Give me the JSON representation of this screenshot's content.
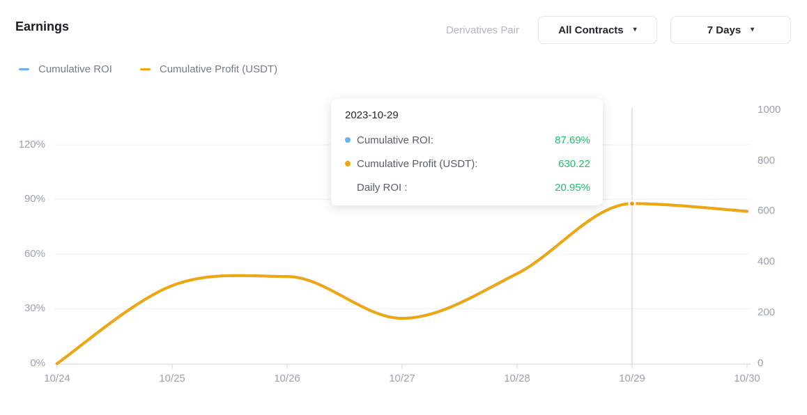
{
  "header": {
    "title": "Earnings",
    "pair_label": "Derivatives Pair",
    "contracts_dropdown": {
      "value": "All Contracts"
    },
    "period_dropdown": {
      "value": "7 Days"
    }
  },
  "icons": {
    "dropdown_caret": "▾"
  },
  "legend": {
    "items": [
      {
        "label": "Cumulative ROI",
        "color": "#6cb0f4"
      },
      {
        "label": "Cumulative Profit (USDT)",
        "color": "#f0a60d"
      }
    ]
  },
  "tooltip": {
    "date": "2023-10-29",
    "value_color": "#1fbf6b",
    "rows": [
      {
        "label": "Cumulative ROI:",
        "value": "87.69%",
        "dot_color": "#6cb0f4"
      },
      {
        "label": "Cumulative Profit (USDT):",
        "value": "630.22",
        "dot_color": "#f0a60d"
      },
      {
        "label": "Daily ROI :",
        "value": "20.95%",
        "dot_color": null
      }
    ]
  },
  "chart_data": {
    "type": "line",
    "smooth": true,
    "grid": true,
    "legend_position": "top-left",
    "title": "Earnings",
    "x_labels": [
      "10/24",
      "10/25",
      "10/26",
      "10/27",
      "10/28",
      "10/29",
      "10/30"
    ],
    "series": [
      {
        "name": "Cumulative ROI",
        "axis": "left",
        "unit": "%",
        "color": "#6cb0f4",
        "values": [
          0,
          42.7,
          47.7,
          24.8,
          49.3,
          87.69,
          83.5
        ]
      },
      {
        "name": "Cumulative Profit (USDT)",
        "axis": "right",
        "unit": "USDT",
        "color": "#f0a60d",
        "values": [
          0,
          307,
          343,
          178,
          354,
          630.22,
          600
        ]
      }
    ],
    "left_axis": {
      "tick_labels": [
        "0%",
        "30%",
        "60%",
        "90%",
        "120%"
      ],
      "tick_values": [
        0,
        30,
        60,
        90,
        120
      ],
      "range": [
        0,
        140
      ]
    },
    "right_axis": {
      "tick_labels": [
        "0",
        "200",
        "400",
        "600",
        "800",
        "1000"
      ],
      "tick_values": [
        0,
        200,
        400,
        600,
        800,
        1000
      ],
      "range": [
        0,
        1010
      ]
    },
    "highlight": {
      "x_index": 5,
      "date": "2023-10-29",
      "cumulative_roi": "87.69%",
      "cumulative_profit_usdt": "630.22",
      "daily_roi": "20.95%"
    }
  }
}
